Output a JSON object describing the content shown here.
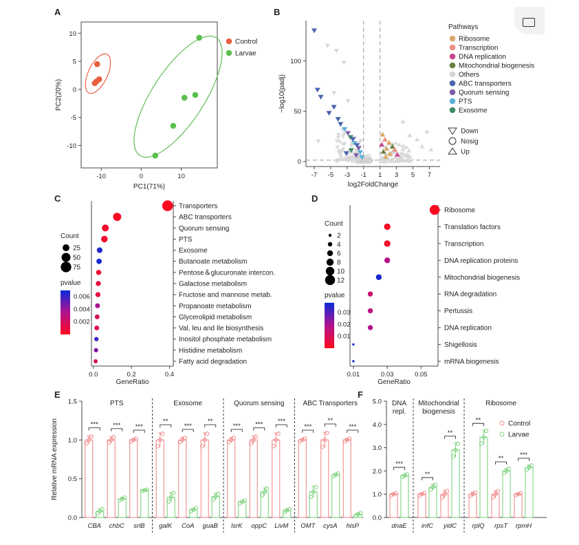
{
  "panels": {
    "A": "A",
    "B": "B",
    "C": "C",
    "D": "D",
    "E": "E",
    "F": "F"
  },
  "colors": {
    "control": "#e9603f",
    "larvae": "#5bbf4f",
    "ctrl_bar": "#f08c8c",
    "larv_bar": "#7fd37f",
    "sig_low": "#ff0a1e",
    "sig_high": "#0b2bd9"
  },
  "chart_data": [
    {
      "id": "A",
      "type": "scatter",
      "xlabel": "PC1(71%)",
      "ylabel": "PC2(20%)",
      "xlim": [
        -15,
        19
      ],
      "ylim": [
        -14,
        12
      ],
      "xticks": [
        -10,
        0,
        10
      ],
      "yticks": [
        -10,
        -5,
        0,
        5,
        10
      ],
      "legend": [
        "Control",
        "Larvae"
      ],
      "series": [
        {
          "name": "Control",
          "points": [
            [
              -11,
              4.5
            ],
            [
              -10.5,
              1.8
            ],
            [
              -11.2,
              1.4
            ],
            [
              -11.6,
              1.1
            ]
          ]
        },
        {
          "name": "Larvae",
          "points": [
            [
              14.5,
              9.2
            ],
            [
              13.5,
              -1
            ],
            [
              10.8,
              -1.5
            ],
            [
              8,
              -6.5
            ],
            [
              3.5,
              -11.8
            ]
          ]
        }
      ]
    },
    {
      "id": "B",
      "type": "scatter",
      "xlabel": "log2FoldChange",
      "ylabel": "−log10(padj)",
      "xlim": [
        -8,
        8.3
      ],
      "ylim": [
        -5,
        140
      ],
      "xticks": [
        -7,
        -5,
        -3,
        -1,
        1,
        3,
        5,
        7
      ],
      "yticks": [
        0,
        50,
        100
      ],
      "thresholds": {
        "x": [
          -1,
          1
        ],
        "y": 1.3
      },
      "legend_title": "Pathways",
      "pathways": [
        {
          "name": "Ribosome",
          "color": "#d9a86a"
        },
        {
          "name": "Transcription",
          "color": "#ec8f80"
        },
        {
          "name": "DNA replication",
          "color": "#c8478f"
        },
        {
          "name": "Mitochondrial biogenesis",
          "color": "#6b7f3d"
        },
        {
          "name": "Others",
          "color": "#d6d6d6"
        },
        {
          "name": "ABC transporters",
          "color": "#4a63b0"
        },
        {
          "name": "Quorum sensing",
          "color": "#7b5ea7"
        },
        {
          "name": "PTS",
          "color": "#5ab0d8"
        },
        {
          "name": "Exosome",
          "color": "#3f8a64"
        }
      ],
      "shapes": [
        "Down",
        "Nosig",
        "Up"
      ],
      "highlight_points": [
        {
          "x": -7,
          "y": 130,
          "p": "ABC transporters",
          "dir": "down"
        },
        {
          "x": -6.6,
          "y": 71,
          "p": "ABC transporters",
          "dir": "down"
        },
        {
          "x": -6.2,
          "y": 64,
          "p": "ABC transporters",
          "dir": "down"
        },
        {
          "x": -4.6,
          "y": 54,
          "p": "ABC transporters",
          "dir": "down"
        },
        {
          "x": -5.2,
          "y": 48,
          "p": "ABC transporters",
          "dir": "down"
        },
        {
          "x": -4.1,
          "y": 42,
          "p": "ABC transporters",
          "dir": "down"
        },
        {
          "x": -3.8,
          "y": 37,
          "p": "ABC transporters",
          "dir": "down"
        },
        {
          "x": -3.3,
          "y": 32,
          "p": "PTS",
          "dir": "down"
        },
        {
          "x": -2.9,
          "y": 28,
          "p": "Quorum sensing",
          "dir": "down"
        },
        {
          "x": -2.6,
          "y": 24,
          "p": "Exosome",
          "dir": "down"
        },
        {
          "x": -2.3,
          "y": 22,
          "p": "ABC transporters",
          "dir": "down"
        },
        {
          "x": -2.1,
          "y": 18,
          "p": "PTS",
          "dir": "down"
        },
        {
          "x": -1.8,
          "y": 16,
          "p": "ABC transporters",
          "dir": "down"
        },
        {
          "x": -1.6,
          "y": 13,
          "p": "Quorum sensing",
          "dir": "down"
        },
        {
          "x": -2.5,
          "y": 11,
          "p": "Exosome",
          "dir": "down"
        },
        {
          "x": -1.4,
          "y": 9,
          "p": "PTS",
          "dir": "down"
        },
        {
          "x": -3.1,
          "y": 8,
          "p": "ABC transporters",
          "dir": "down"
        },
        {
          "x": -1.9,
          "y": 6,
          "p": "Quorum sensing",
          "dir": "down"
        },
        {
          "x": -1.2,
          "y": 4,
          "p": "PTS",
          "dir": "down"
        },
        {
          "x": 1.3,
          "y": 27,
          "p": "Ribosome",
          "dir": "up"
        },
        {
          "x": 1.6,
          "y": 22,
          "p": "Transcription",
          "dir": "up"
        },
        {
          "x": 2.1,
          "y": 19,
          "p": "Ribosome",
          "dir": "up"
        },
        {
          "x": 1.2,
          "y": 17,
          "p": "DNA replication",
          "dir": "up"
        },
        {
          "x": 2.5,
          "y": 15,
          "p": "Mitochondrial biogenesis",
          "dir": "up"
        },
        {
          "x": 1.8,
          "y": 13,
          "p": "Ribosome",
          "dir": "up"
        },
        {
          "x": 2.8,
          "y": 12,
          "p": "Transcription",
          "dir": "up"
        },
        {
          "x": 1.4,
          "y": 10,
          "p": "Mitochondrial biogenesis",
          "dir": "up"
        },
        {
          "x": 2.2,
          "y": 8,
          "p": "Ribosome",
          "dir": "up"
        },
        {
          "x": 3.1,
          "y": 7,
          "p": "DNA replication",
          "dir": "up"
        },
        {
          "x": 1.7,
          "y": 5,
          "p": "Ribosome",
          "dir": "up"
        }
      ]
    },
    {
      "id": "C",
      "type": "scatter",
      "xlabel": "GeneRatio",
      "xlim": [
        -0.01,
        0.42
      ],
      "xticks": [
        0.0,
        0.2,
        0.4
      ],
      "size_legend_title": "Count",
      "size_legend": [
        25,
        50,
        75
      ],
      "color_legend_title": "pvalue",
      "color_ticks": [
        0.006,
        0.004,
        0.002
      ],
      "color_range": [
        0,
        0.007
      ],
      "terms": [
        {
          "label": "Transporters",
          "ratio": 0.39,
          "count": 80,
          "p": 0.0001
        },
        {
          "label": "ABC transporters",
          "ratio": 0.125,
          "count": 40,
          "p": 0.0002
        },
        {
          "label": "Quorum sensing",
          "ratio": 0.063,
          "count": 25,
          "p": 0.0005
        },
        {
          "label": "PTS",
          "ratio": 0.058,
          "count": 22,
          "p": 0.0006
        },
        {
          "label": "Exosome",
          "ratio": 0.033,
          "count": 14,
          "p": 0.0065
        },
        {
          "label": "Butanoate metabolism",
          "ratio": 0.03,
          "count": 12,
          "p": 0.0068
        },
        {
          "label": "Pentose＆glucuronate intercon.",
          "ratio": 0.028,
          "count": 11,
          "p": 0.0008
        },
        {
          "label": "Galactose metabolism",
          "ratio": 0.026,
          "count": 10,
          "p": 0.001
        },
        {
          "label": "Fructose and mannose metab.",
          "ratio": 0.024,
          "count": 10,
          "p": 0.0012
        },
        {
          "label": "Propanoate metabolism",
          "ratio": 0.022,
          "count": 9,
          "p": 0.0035
        },
        {
          "label": "Glycerolipid metabolism",
          "ratio": 0.02,
          "count": 8,
          "p": 0.0018
        },
        {
          "label": "Val, leu and Ile biosynthesis",
          "ratio": 0.018,
          "count": 8,
          "p": 0.0015
        },
        {
          "label": "Inositol phosphate metabolism",
          "ratio": 0.016,
          "count": 6,
          "p": 0.0058
        },
        {
          "label": "Histidine metabolism",
          "ratio": 0.014,
          "count": 6,
          "p": 0.0045
        },
        {
          "label": "Fatty acid degradation",
          "ratio": 0.012,
          "count": 5,
          "p": 0.002
        }
      ]
    },
    {
      "id": "D",
      "type": "scatter",
      "xlabel": "GeneRatio",
      "xlim": [
        0.008,
        0.06
      ],
      "xticks": [
        0.01,
        0.03,
        0.05
      ],
      "size_legend_title": "Count",
      "size_legend": [
        2,
        4,
        6,
        8,
        10,
        12
      ],
      "color_legend_title": "pvalue",
      "color_ticks": [
        0.03,
        0.02,
        0.01
      ],
      "color_range": [
        0,
        0.038
      ],
      "terms": [
        {
          "label": "Ribosome",
          "ratio": 0.058,
          "count": 12,
          "p": 0.0005
        },
        {
          "label": "Translation factors",
          "ratio": 0.03,
          "count": 7,
          "p": 0.001
        },
        {
          "label": "Transcription",
          "ratio": 0.03,
          "count": 7,
          "p": 0.002
        },
        {
          "label": "DNA replication proteins",
          "ratio": 0.03,
          "count": 6,
          "p": 0.018
        },
        {
          "label": "Mitochondrial biogenesis",
          "ratio": 0.025,
          "count": 6,
          "p": 0.036
        },
        {
          "label": "RNA degradation",
          "ratio": 0.02,
          "count": 5,
          "p": 0.014
        },
        {
          "label": "Pertussis",
          "ratio": 0.02,
          "count": 5,
          "p": 0.016
        },
        {
          "label": "DNA replication",
          "ratio": 0.02,
          "count": 5,
          "p": 0.019
        },
        {
          "label": "Shigellosis",
          "ratio": 0.01,
          "count": 1,
          "p": 0.036
        },
        {
          "label": "mRNA biogenesis",
          "ratio": 0.01,
          "count": 1,
          "p": 0.037
        }
      ]
    },
    {
      "id": "E",
      "type": "bar",
      "ylabel": "Relative mRNA expression",
      "ylim": [
        0,
        1.5
      ],
      "yticks": [
        0.0,
        0.5,
        1.0,
        1.5
      ],
      "groups": [
        {
          "name": "PTS",
          "genes": [
            "CBA",
            "chbC",
            "srlB"
          ]
        },
        {
          "name": "Exosome",
          "genes": [
            "galK",
            "CoA",
            "guaB"
          ]
        },
        {
          "name": "Quorum sensing",
          "genes": [
            "lsrK",
            "oppC",
            "LivM"
          ]
        },
        {
          "name": "ABC Transporters",
          "genes": [
            "OMT",
            "cysA",
            "hisP"
          ]
        }
      ],
      "series": [
        {
          "name": "Control",
          "values": [
            1.0,
            1.0,
            1.0,
            1.0,
            1.0,
            1.0,
            1.0,
            1.0,
            1.0,
            1.0,
            1.0,
            1.0
          ],
          "err": [
            0.05,
            0.04,
            0.02,
            0.09,
            0.03,
            0.09,
            0.03,
            0.05,
            0.09,
            0.02,
            0.1,
            0.02
          ]
        },
        {
          "name": "Larvae",
          "values": [
            0.08,
            0.24,
            0.35,
            0.26,
            0.1,
            0.27,
            0.2,
            0.33,
            0.09,
            0.33,
            0.55,
            0.04
          ],
          "err": [
            0.03,
            0.02,
            0.01,
            0.06,
            0.02,
            0.04,
            0.02,
            0.05,
            0.02,
            0.07,
            0.02,
            0.02
          ]
        }
      ],
      "significance": [
        "***",
        "***",
        "***",
        "**",
        "***",
        "**",
        "***",
        "***",
        "***",
        "***",
        "**",
        "***"
      ]
    },
    {
      "id": "F",
      "type": "bar",
      "ylim": [
        0,
        5.0
      ],
      "yticks": [
        0.0,
        1.0,
        2.0,
        3.0,
        4.0,
        5.0
      ],
      "groups": [
        {
          "name": "DNA repl.",
          "genes": [
            "dnaE"
          ]
        },
        {
          "name": "Mitochondrial biogenesis",
          "genes": [
            "infC",
            "yidC"
          ]
        },
        {
          "name": "Ribosome",
          "genes": [
            "rplQ",
            "rpsT",
            "rpmH"
          ]
        }
      ],
      "legend": [
        "Control",
        "Larvae"
      ],
      "series": [
        {
          "name": "Control",
          "values": [
            1.0,
            1.0,
            1.0,
            1.0,
            1.0,
            1.0
          ],
          "err": [
            0.05,
            0.06,
            0.15,
            0.08,
            0.15,
            0.05
          ]
        },
        {
          "name": "Larvae",
          "values": [
            1.8,
            1.3,
            2.9,
            3.45,
            2.0,
            2.15
          ],
          "err": [
            0.06,
            0.12,
            0.3,
            0.3,
            0.1,
            0.1
          ]
        }
      ],
      "significance": [
        "***",
        "**",
        "**",
        "**",
        "**",
        "***"
      ]
    }
  ]
}
